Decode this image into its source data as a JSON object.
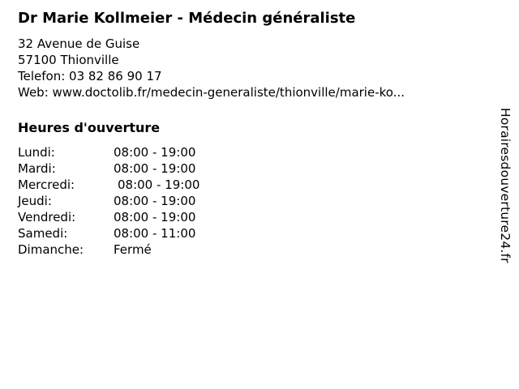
{
  "colors": {
    "background": "#ffffff",
    "text": "#000000"
  },
  "header": {
    "title": "Dr Marie Kollmeier - Médecin généraliste"
  },
  "contact": {
    "address_line_1": "32 Avenue de Guise",
    "address_line_2": "57100 Thionville",
    "phone_line": "Telefon: 03 82 86 90 17",
    "web_line": "Web: www.doctolib.fr/medecin-generaliste/thionville/marie-ko..."
  },
  "opening_hours": {
    "heading": "Heures d'ouverture",
    "rows": [
      {
        "day": "Lundi:",
        "hours": "08:00 - 19:00"
      },
      {
        "day": "Mardi:",
        "hours": "08:00 - 19:00"
      },
      {
        "day": "Mercredi:",
        "hours": "08:00 - 19:00"
      },
      {
        "day": "Jeudi:",
        "hours": "08:00 - 19:00"
      },
      {
        "day": "Vendredi:",
        "hours": "08:00 - 19:00"
      },
      {
        "day": "Samedi:",
        "hours": "08:00 - 11:00"
      },
      {
        "day": "Dimanche:",
        "hours": "Fermé"
      }
    ]
  },
  "watermark": {
    "site_name": "Horairesdouverture24.fr"
  }
}
